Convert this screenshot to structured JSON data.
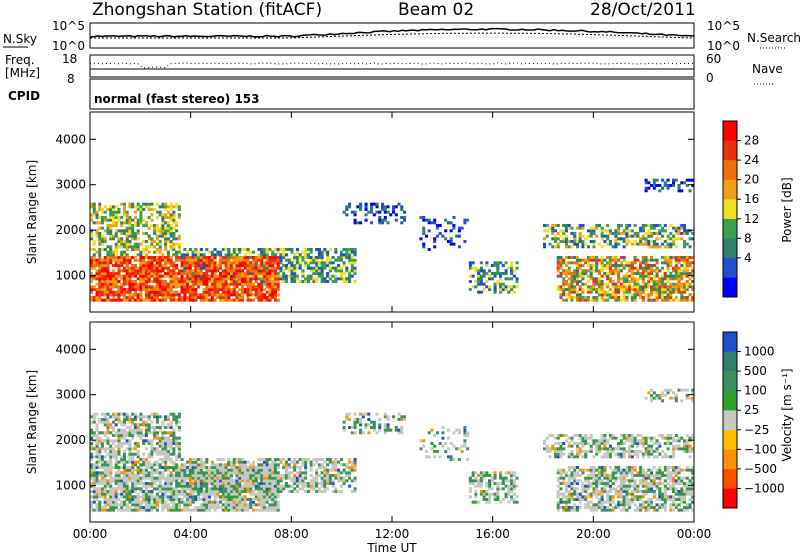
{
  "header": {
    "station": "Zhongshan Station (fitACF)",
    "beam": "Beam 02",
    "date": "28/Oct/2011"
  },
  "top_panels": {
    "nsky_label": "N.Sky",
    "nsearch_label": "N.Search",
    "noise_ticks": [
      "10^5",
      "10^0"
    ],
    "freq_label_1": "Freq.",
    "freq_label_2": "[MHz]",
    "freq_ticks": [
      "18",
      "8"
    ],
    "nave_ticks": [
      "60",
      "0"
    ],
    "nave_label": "Nave",
    "cpid_label": "CPID",
    "cpid_text": "normal (fast stereo) 153"
  },
  "colors": {
    "power": [
      "#0000ff",
      "#2050d0",
      "#2f7f6a",
      "#3aa050",
      "#f0e020",
      "#f0a010",
      "#f07010",
      "#e83010",
      "#ff0000"
    ],
    "velocity": [
      "#ff0000",
      "#ff5000",
      "#ff9000",
      "#ffc000",
      "#c8c8c0",
      "#2fa02f",
      "#3c9060",
      "#2f7f6a",
      "#2050d0"
    ]
  },
  "chart_data": [
    {
      "type": "heatmap",
      "title": "Power",
      "ylabel": "Slant Range [km]",
      "ylim": [
        200,
        4600
      ],
      "yticks": [
        1000,
        2000,
        3000,
        4000
      ],
      "colorbar_label": "Power [dB]",
      "colorbar_ticks": [
        "28",
        "24",
        "20",
        "16",
        "12",
        "8",
        "4"
      ]
    },
    {
      "type": "heatmap",
      "title": "Velocity",
      "ylabel": "Slant Range [km]",
      "ylim": [
        200,
        4600
      ],
      "yticks": [
        1000,
        2000,
        3000,
        4000
      ],
      "colorbar_label": "Velocity [m s⁻¹]",
      "colorbar_ticks": [
        "1000",
        "500",
        "100",
        "25",
        "−25",
        "−100",
        "−500",
        "−1000"
      ]
    }
  ],
  "xaxis": {
    "label": "Time UT",
    "ticks": [
      "00:00",
      "04:00",
      "08:00",
      "12:00",
      "16:00",
      "20:00",
      "00:00"
    ]
  }
}
